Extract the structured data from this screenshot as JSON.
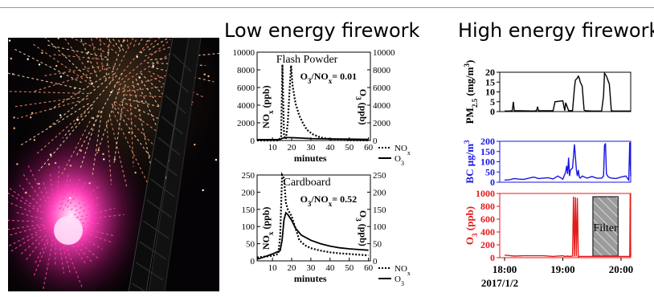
{
  "panel_titles": {
    "left": "Low energy firework",
    "right": "High energy firework"
  },
  "photo": {
    "description_icon": "firework-photo-icon"
  },
  "chart_data": [
    {
      "id": "flash-powder",
      "type": "line",
      "annotation": "Flash Powder",
      "ratio_label": "O₃/NOₓ= 0.01",
      "ratio_parts": {
        "prefix": "O",
        "sub1": "3",
        "mid": "/NO",
        "sub2": "x",
        "suffix": "= 0.01"
      },
      "xlabel": "minutes",
      "ylabel_left": {
        "main": "NO",
        "sub": "x",
        "unit": " (ppb)"
      },
      "ylabel_right": {
        "main": "O",
        "sub": "3",
        "unit": " (ppb)"
      },
      "xlim": [
        2,
        61
      ],
      "ylim_left": [
        0,
        10000
      ],
      "ylim_right": [
        0,
        10000
      ],
      "xticks": [
        10,
        20,
        30,
        40,
        50,
        60
      ],
      "yticks_left": [
        0,
        2000,
        4000,
        6000,
        8000,
        10000
      ],
      "yticks_right": [
        0,
        2000,
        4000,
        6000,
        8000,
        10000
      ],
      "series": [
        {
          "name": "NOₓ",
          "style": "dotted",
          "x": [
            2,
            10,
            13,
            14.5,
            15.2,
            16,
            17,
            18,
            19,
            19.7,
            20.5,
            22,
            24,
            26,
            28,
            31,
            35,
            40,
            45,
            50,
            55,
            60
          ],
          "y": [
            0,
            0,
            0,
            400,
            8600,
            500,
            150,
            2000,
            6000,
            8500,
            6200,
            4200,
            2800,
            1900,
            1200,
            700,
            350,
            150,
            60,
            20,
            5,
            0
          ]
        },
        {
          "name": "O₃",
          "style": "solid",
          "x": [
            2,
            10,
            14,
            15,
            16,
            17,
            18,
            20,
            22,
            25,
            30,
            40,
            50,
            60
          ],
          "y": [
            100,
            100,
            110,
            250,
            300,
            330,
            330,
            320,
            300,
            270,
            220,
            180,
            150,
            130
          ]
        }
      ],
      "legend": [
        "NOₓ",
        "O₃"
      ]
    },
    {
      "id": "cardboard",
      "type": "line",
      "annotation": "Cardboard",
      "ratio_label": "O₃/NOₓ= 0.52",
      "ratio_parts": {
        "prefix": "O",
        "sub1": "3",
        "mid": "/NO",
        "sub2": "x",
        "suffix": "= 0.52"
      },
      "xlabel": "minutes",
      "ylabel_left": {
        "main": "NO",
        "sub": "x",
        "unit": " (ppb)"
      },
      "ylabel_right": {
        "main": "O",
        "sub": "3",
        "unit": " (ppb)"
      },
      "xlim": [
        2,
        61
      ],
      "ylim_left": [
        0,
        250
      ],
      "ylim_right": [
        0,
        250
      ],
      "xticks": [
        10,
        20,
        30,
        40,
        50,
        60
      ],
      "yticks_left": [
        0,
        50,
        100,
        150,
        200,
        250
      ],
      "yticks_right": [
        0,
        50,
        100,
        150,
        200,
        250
      ],
      "series": [
        {
          "name": "NOₓ",
          "style": "dotted",
          "x": [
            2,
            5,
            10,
            13,
            14,
            15,
            16,
            17,
            18,
            19,
            20,
            22,
            24,
            27,
            30,
            35,
            40,
            45,
            50,
            55,
            60
          ],
          "y": [
            10,
            12,
            15,
            20,
            70,
            255,
            240,
            170,
            150,
            140,
            130,
            95,
            60,
            45,
            37,
            30,
            25,
            22,
            20,
            18,
            16
          ]
        },
        {
          "name": "O₃",
          "style": "solid",
          "x": [
            2,
            5,
            10,
            14,
            15,
            16,
            17,
            18,
            20,
            22,
            25,
            30,
            35,
            40,
            45,
            50,
            55,
            60
          ],
          "y": [
            5,
            10,
            20,
            30,
            60,
            120,
            140,
            135,
            118,
            95,
            75,
            60,
            50,
            43,
            38,
            35,
            33,
            31
          ]
        }
      ],
      "legend": [
        "NOₓ",
        "O₃"
      ]
    },
    {
      "id": "pm25",
      "type": "line",
      "color": "#000000",
      "ylabel": {
        "main": "PM",
        "sub": "2.5",
        "unit": " (mg/m",
        "sup": "3",
        "close": ")"
      },
      "ylim": [
        0,
        20
      ],
      "yticks": [
        0,
        5,
        10,
        15,
        20
      ],
      "xlim_minutes": [
        -5,
        130
      ],
      "x_minutes": [
        0,
        5,
        8,
        9,
        10,
        30,
        33,
        34,
        35,
        50,
        52,
        60,
        62,
        63,
        66,
        67,
        70,
        72,
        73,
        75,
        76,
        77,
        78,
        80,
        82,
        83,
        85,
        90,
        100,
        102,
        103,
        105,
        108,
        110,
        112,
        120,
        125,
        130
      ],
      "y": [
        0.3,
        0.3,
        0.5,
        5,
        0.5,
        0.3,
        0.5,
        2.5,
        0.4,
        0.4,
        5,
        5.5,
        0.5,
        4.5,
        0.5,
        0.5,
        0.4,
        12,
        16,
        17,
        18,
        17,
        15,
        13,
        0.8,
        0.5,
        0.4,
        0.3,
        0.3,
        8,
        19.5,
        18,
        14,
        0.5,
        0.3,
        0.3,
        0.3,
        0.3
      ]
    },
    {
      "id": "bc",
      "type": "line",
      "color": "#1a16e0",
      "ylabel": {
        "main": "BC ",
        "sub": "",
        "unit": "μg/m",
        "sup": "3",
        "close": ""
      },
      "ylim": [
        0,
        200
      ],
      "yticks": [
        0,
        50,
        100,
        150,
        200
      ],
      "xlim_minutes": [
        -5,
        130
      ],
      "x_minutes": [
        0,
        5,
        10,
        15,
        20,
        25,
        30,
        35,
        40,
        45,
        50,
        55,
        60,
        63,
        64,
        65,
        66,
        67,
        68,
        70,
        72,
        74,
        75,
        76,
        77,
        78,
        80,
        85,
        90,
        95,
        100,
        102,
        103,
        104,
        105,
        107,
        110,
        115,
        120,
        125,
        128,
        129,
        130
      ],
      "y": [
        10,
        12,
        18,
        15,
        14,
        20,
        25,
        18,
        20,
        22,
        16,
        30,
        15,
        50,
        80,
        40,
        120,
        30,
        60,
        70,
        185,
        60,
        30,
        60,
        25,
        20,
        30,
        20,
        28,
        20,
        20,
        30,
        180,
        190,
        40,
        25,
        20,
        18,
        25,
        30,
        10,
        195,
        30
      ]
    },
    {
      "id": "o3",
      "type": "line",
      "color": "#e61b1b",
      "ylabel": {
        "main": "O",
        "sub": "3",
        "unit": " (ppb)",
        "sup": "",
        "close": ""
      },
      "ylim": [
        0,
        1000
      ],
      "yticks": [
        0,
        200,
        400,
        600,
        800,
        1000
      ],
      "xlim_minutes": [
        -5,
        130
      ],
      "filter_label": "Filter",
      "filter_minutes": [
        91,
        117
      ],
      "xticks_minutes": [
        0,
        60,
        120
      ],
      "xtick_labels": [
        "18:00",
        "19:00",
        "20:00"
      ],
      "date_label": "2017/1/2",
      "x_minutes": [
        0,
        10,
        20,
        30,
        40,
        50,
        60,
        62,
        65,
        67,
        70,
        71,
        72,
        73,
        74,
        75,
        76,
        77,
        80,
        85,
        90,
        129,
        129.5,
        130
      ],
      "y": [
        40,
        25,
        30,
        30,
        30,
        20,
        30,
        20,
        25,
        20,
        25,
        950,
        15,
        940,
        20,
        930,
        15,
        20,
        20,
        20,
        20,
        20,
        1000,
        20
      ]
    }
  ]
}
